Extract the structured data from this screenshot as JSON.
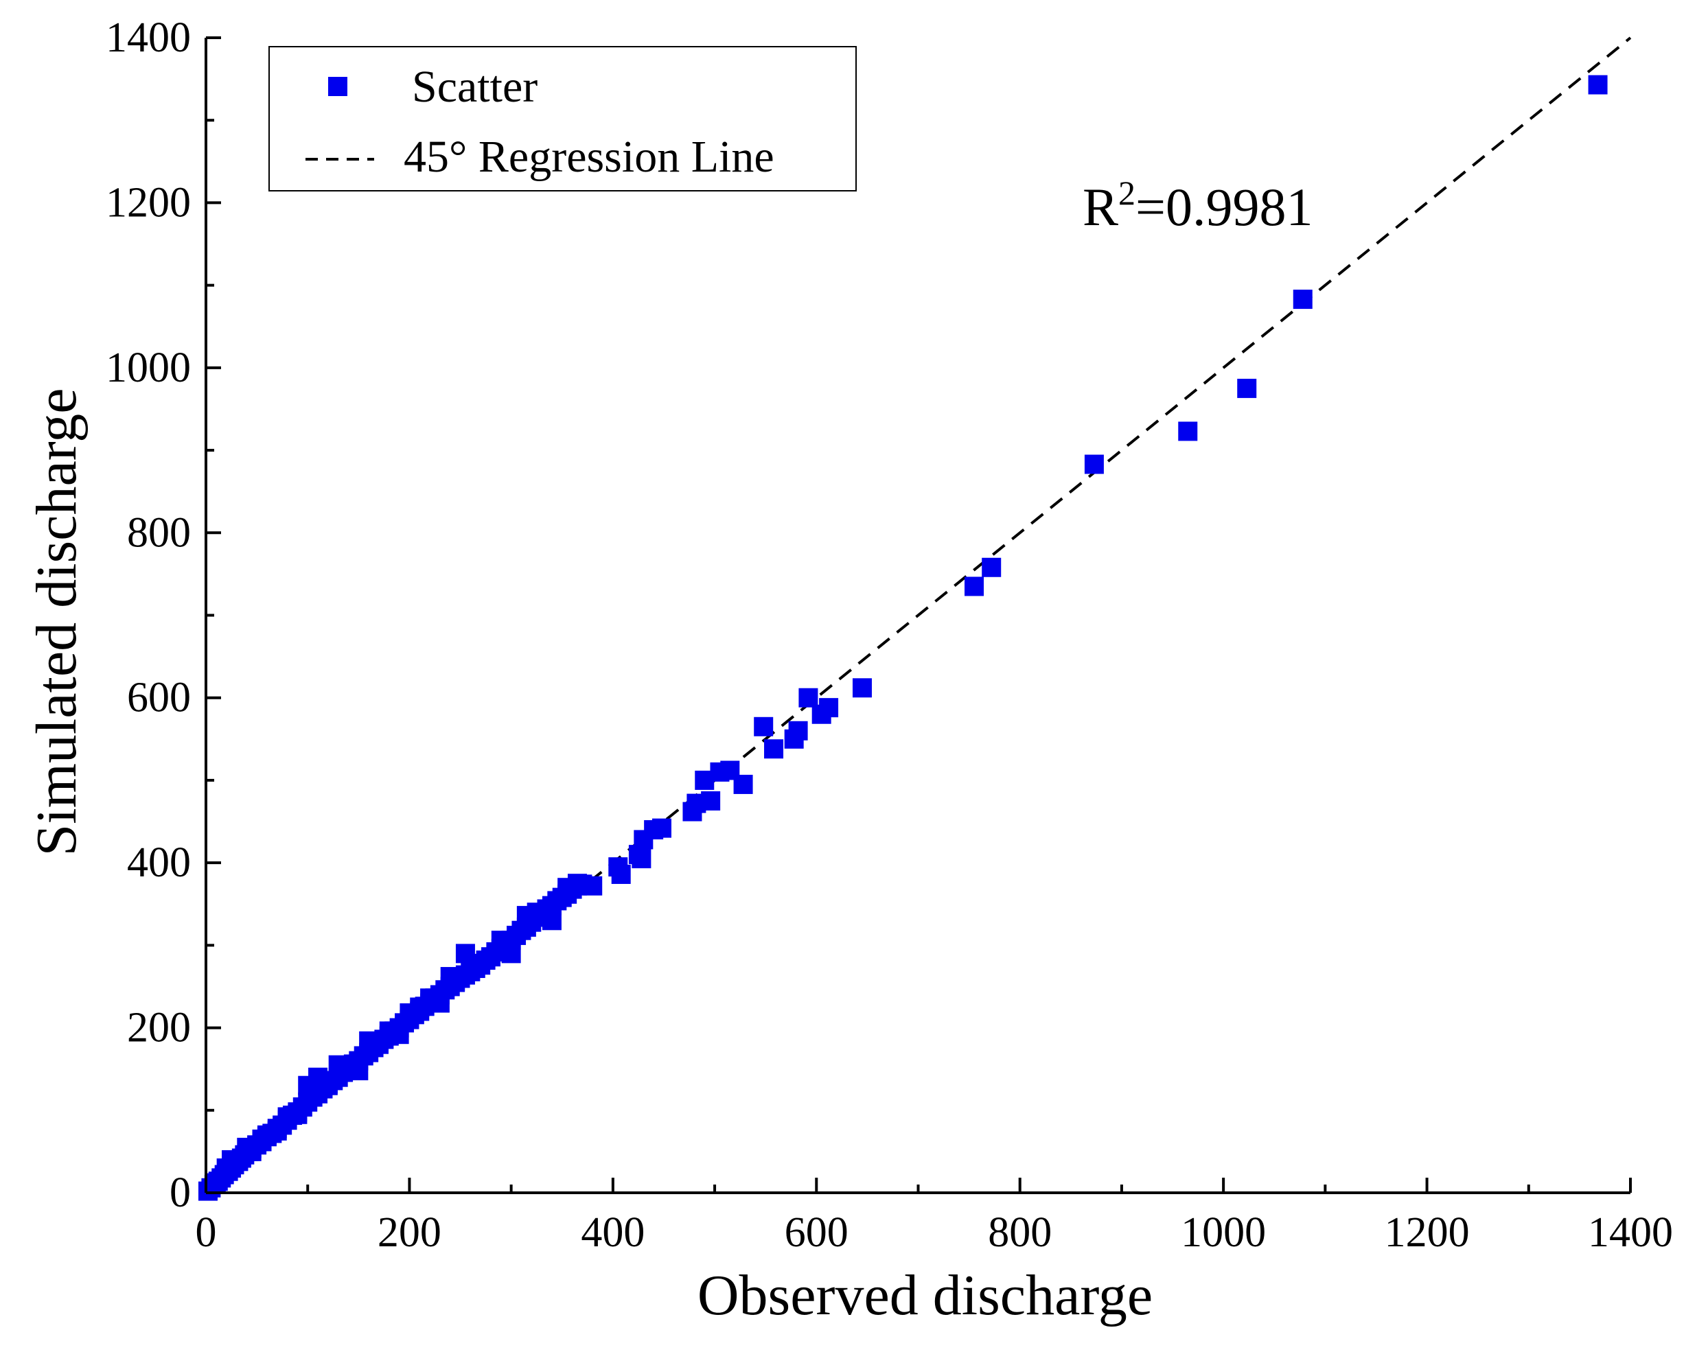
{
  "chart_data": {
    "type": "scatter",
    "xlabel": "Observed discharge",
    "ylabel": "Simulated discharge",
    "xlim": [
      0,
      1400
    ],
    "ylim": [
      0,
      1400
    ],
    "x_ticks": [
      0,
      200,
      400,
      600,
      800,
      1000,
      1200,
      1400
    ],
    "y_ticks": [
      0,
      200,
      400,
      600,
      800,
      1000,
      1200,
      1400
    ],
    "minor_tick_step": 100,
    "legend": {
      "position": "top-left",
      "entries": [
        {
          "label": "Scatter",
          "kind": "marker",
          "color": "#0000ee"
        },
        {
          "label": "45° Regression Line",
          "kind": "dashed-line",
          "color": "#000000"
        }
      ]
    },
    "annotation": {
      "prefix": "R",
      "superscript": "2",
      "suffix": "=0.9981"
    },
    "regression_line": {
      "from": [
        0,
        0
      ],
      "to": [
        1400,
        1400
      ]
    },
    "marker_color": "#0000ee",
    "series": [
      {
        "name": "Scatter",
        "points": [
          [
            2,
            2
          ],
          [
            5,
            6
          ],
          [
            8,
            10
          ],
          [
            12,
            14
          ],
          [
            15,
            18
          ],
          [
            18,
            22
          ],
          [
            22,
            26
          ],
          [
            25,
            30
          ],
          [
            28,
            34
          ],
          [
            32,
            38
          ],
          [
            35,
            42
          ],
          [
            38,
            46
          ],
          [
            42,
            50
          ],
          [
            45,
            54
          ],
          [
            50,
            58
          ],
          [
            55,
            62
          ],
          [
            60,
            68
          ],
          [
            65,
            72
          ],
          [
            70,
            78
          ],
          [
            75,
            82
          ],
          [
            80,
            88
          ],
          [
            85,
            94
          ],
          [
            90,
            98
          ],
          [
            95,
            104
          ],
          [
            100,
            110
          ],
          [
            105,
            116
          ],
          [
            110,
            120
          ],
          [
            115,
            126
          ],
          [
            120,
            130
          ],
          [
            125,
            136
          ],
          [
            130,
            140
          ],
          [
            135,
            146
          ],
          [
            140,
            150
          ],
          [
            145,
            156
          ],
          [
            150,
            160
          ],
          [
            155,
            166
          ],
          [
            160,
            170
          ],
          [
            165,
            176
          ],
          [
            170,
            180
          ],
          [
            175,
            186
          ],
          [
            180,
            190
          ],
          [
            185,
            196
          ],
          [
            190,
            200
          ],
          [
            195,
            206
          ],
          [
            200,
            210
          ],
          [
            205,
            216
          ],
          [
            210,
            220
          ],
          [
            215,
            226
          ],
          [
            220,
            230
          ],
          [
            225,
            236
          ],
          [
            230,
            240
          ],
          [
            235,
            246
          ],
          [
            240,
            250
          ],
          [
            245,
            256
          ],
          [
            250,
            260
          ],
          [
            255,
            264
          ],
          [
            260,
            268
          ],
          [
            265,
            272
          ],
          [
            270,
            276
          ],
          [
            275,
            282
          ],
          [
            280,
            286
          ],
          [
            285,
            292
          ],
          [
            290,
            296
          ],
          [
            295,
            302
          ],
          [
            300,
            306
          ],
          [
            305,
            312
          ],
          [
            310,
            318
          ],
          [
            315,
            322
          ],
          [
            320,
            328
          ],
          [
            325,
            334
          ],
          [
            330,
            338
          ],
          [
            335,
            344
          ],
          [
            340,
            348
          ],
          [
            345,
            354
          ],
          [
            350,
            358
          ],
          [
            355,
            362
          ],
          [
            360,
            368
          ],
          [
            365,
            372
          ],
          [
            370,
            374
          ],
          [
            380,
            372
          ],
          [
            100,
            130
          ],
          [
            110,
            140
          ],
          [
            120,
            132
          ],
          [
            130,
            155
          ],
          [
            140,
            150
          ],
          [
            150,
            148
          ],
          [
            160,
            184
          ],
          [
            170,
            180
          ],
          [
            180,
            196
          ],
          [
            190,
            192
          ],
          [
            200,
            218
          ],
          [
            210,
            225
          ],
          [
            220,
            236
          ],
          [
            230,
            230
          ],
          [
            240,
            262
          ],
          [
            245,
            255
          ],
          [
            255,
            290
          ],
          [
            260,
            278
          ],
          [
            290,
            306
          ],
          [
            300,
            290
          ],
          [
            315,
            336
          ],
          [
            325,
            340
          ],
          [
            340,
            330
          ],
          [
            355,
            370
          ],
          [
            365,
            375
          ],
          [
            25,
            40
          ],
          [
            20,
            30
          ],
          [
            40,
            55
          ],
          [
            60,
            70
          ],
          [
            80,
            92
          ],
          [
            45,
            50
          ],
          [
            55,
            65
          ],
          [
            70,
            75
          ],
          [
            90,
            95
          ],
          [
            10,
            12
          ],
          [
            405,
            395
          ],
          [
            408,
            386
          ],
          [
            425,
            410
          ],
          [
            428,
            405
          ],
          [
            430,
            428
          ],
          [
            440,
            440
          ],
          [
            448,
            442
          ],
          [
            478,
            462
          ],
          [
            482,
            472
          ],
          [
            490,
            500
          ],
          [
            496,
            475
          ],
          [
            505,
            510
          ],
          [
            515,
            512
          ],
          [
            528,
            495
          ],
          [
            548,
            565
          ],
          [
            558,
            538
          ],
          [
            578,
            550
          ],
          [
            582,
            560
          ],
          [
            592,
            600
          ],
          [
            605,
            580
          ],
          [
            612,
            588
          ],
          [
            645,
            612
          ],
          [
            755,
            735
          ],
          [
            772,
            758
          ],
          [
            873,
            883
          ],
          [
            965,
            923
          ],
          [
            1023,
            975
          ],
          [
            1078,
            1083
          ],
          [
            1368,
            1343
          ]
        ]
      }
    ]
  }
}
